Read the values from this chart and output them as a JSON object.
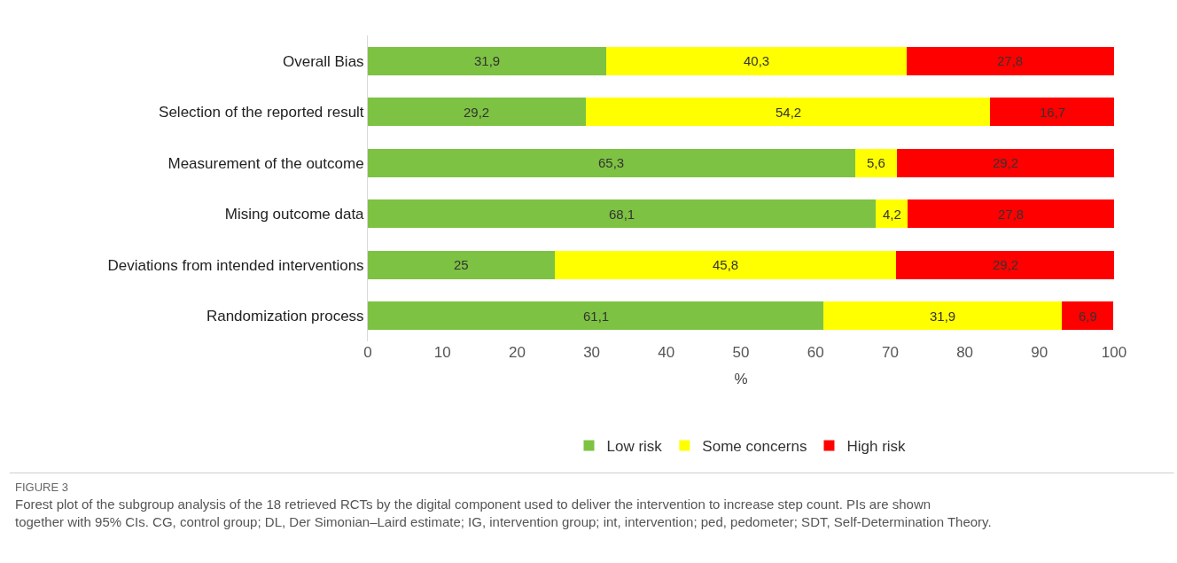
{
  "chart_data": {
    "type": "bar",
    "orientation": "horizontal",
    "stacked": true,
    "xlabel": "%",
    "categories": [
      "Overall Bias",
      "Selection of the reported result",
      "Measurement of the outcome",
      "Mising outcome data",
      "Deviations from intended interventions",
      "Randomization process"
    ],
    "series": [
      {
        "name": "Low risk",
        "color": "#7dc243",
        "values": [
          31.9,
          29.2,
          65.3,
          68.1,
          25,
          61.1
        ],
        "value_labels": [
          "31,9",
          "29,2",
          "65,3",
          "68,1",
          "25",
          "61,1"
        ]
      },
      {
        "name": "Some concerns",
        "color": "#ffff00",
        "values": [
          40.3,
          54.2,
          5.6,
          4.2,
          45.8,
          31.9
        ],
        "value_labels": [
          "40,3",
          "54,2",
          "5,6",
          "4,2",
          "45,8",
          "31,9"
        ]
      },
      {
        "name": "High risk",
        "color": "#ff0000",
        "values": [
          27.8,
          16.7,
          29.2,
          27.8,
          29.2,
          6.9
        ],
        "value_labels": [
          "27,8",
          "16,7",
          "29,2",
          "27,8",
          "29,2",
          "6,9"
        ]
      }
    ],
    "xlim": [
      0,
      100
    ],
    "xticks": [
      0,
      10,
      20,
      30,
      40,
      50,
      60,
      70,
      80,
      90,
      100
    ],
    "legend": "bottom",
    "annotations": [
      "FIGURE 3",
      "Forest plot of the subgroup analysis of the 18 retrieved RCTs by the digital component used to deliver the intervention to increase step count. PIs are shown together with 95% CIs. CG, control group; DL, Der Simonian–Laird estimate; IG, intervention group; int, intervention; ped, pedometer; SDT, Self-Determination Theory."
    ]
  }
}
